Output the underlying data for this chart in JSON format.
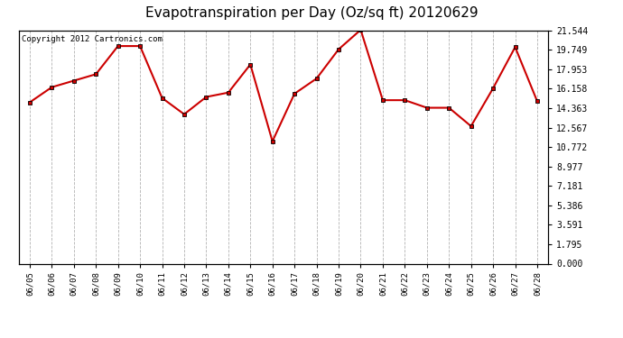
{
  "title": "Evapotranspiration per Day (Oz/sq ft) 20120629",
  "copyright": "Copyright 2012 Cartronics.com",
  "dates": [
    "06/05",
    "06/06",
    "06/07",
    "06/08",
    "06/09",
    "06/10",
    "06/11",
    "06/12",
    "06/13",
    "06/14",
    "06/15",
    "06/16",
    "06/17",
    "06/18",
    "06/19",
    "06/20",
    "06/21",
    "06/22",
    "06/23",
    "06/24",
    "06/25",
    "06/26",
    "06/27",
    "06/28"
  ],
  "values": [
    14.9,
    16.3,
    16.9,
    17.5,
    20.1,
    20.1,
    15.3,
    13.8,
    15.4,
    15.8,
    18.4,
    11.3,
    15.7,
    17.1,
    19.8,
    21.6,
    15.1,
    15.1,
    14.4,
    14.4,
    12.7,
    16.2,
    20.0,
    15.0
  ],
  "line_color": "#cc0000",
  "marker_color": "#cc0000",
  "bg_color": "#ffffff",
  "grid_color": "#aaaaaa",
  "yticks": [
    0.0,
    1.795,
    3.591,
    5.386,
    7.181,
    8.977,
    10.772,
    12.567,
    14.363,
    16.158,
    17.953,
    19.749,
    21.544
  ],
  "ylim": [
    0,
    21.544
  ],
  "title_fontsize": 11,
  "copyright_fontsize": 6.5,
  "xtick_fontsize": 6.5,
  "ytick_fontsize": 7
}
